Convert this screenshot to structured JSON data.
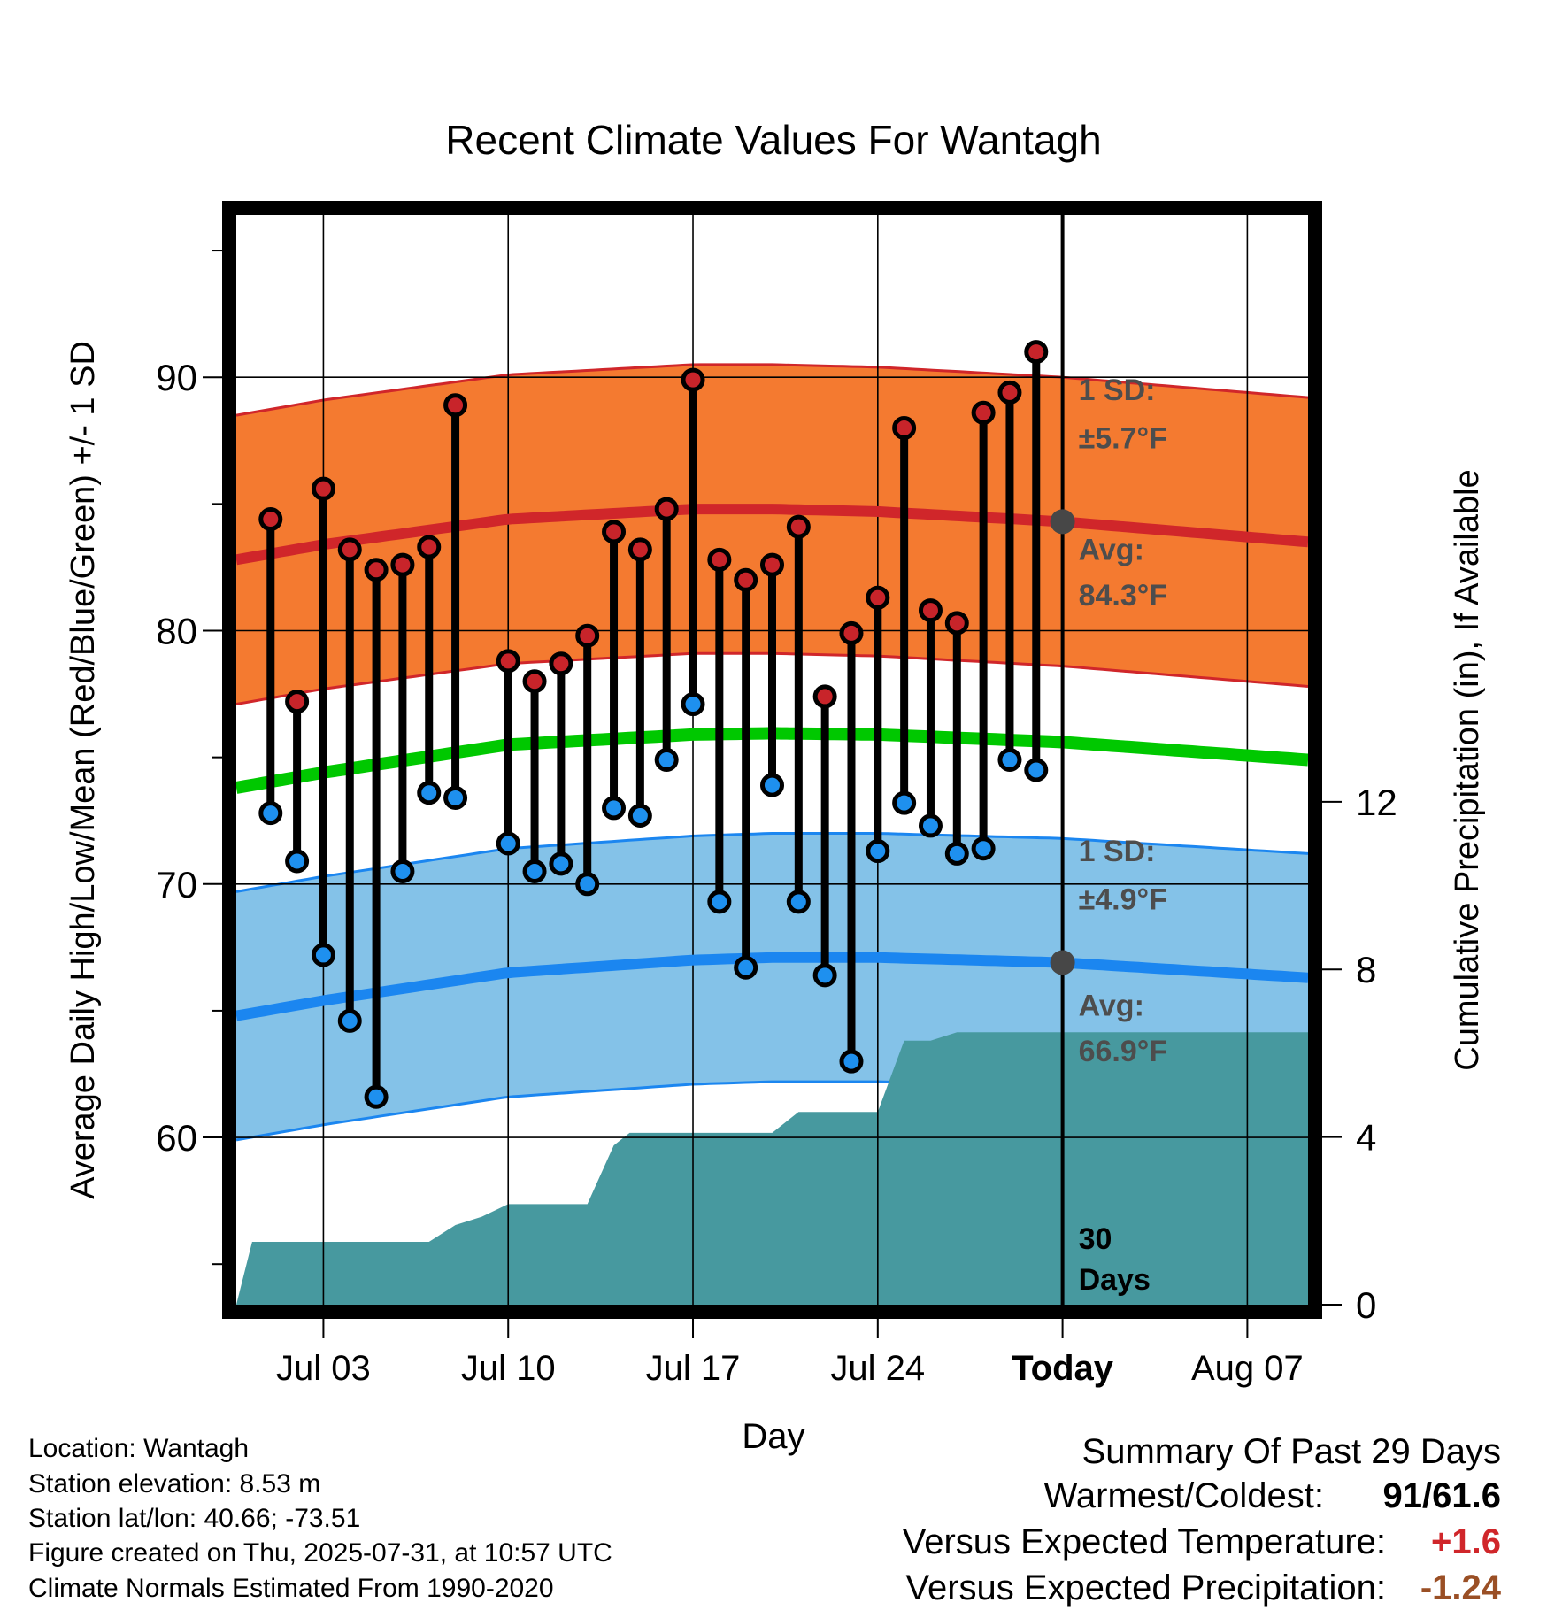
{
  "chart_data": {
    "type": "line",
    "title": "Recent Climate Values For Wantagh",
    "xlabel": "Day",
    "ylabel": "Average Daily High/Low/Mean (Red/Blue/Green) +/- 1 SD",
    "y2label": "Cumulative Precipitation (in), If Available",
    "x_ticks": [
      "Jul 03",
      "Jul 10",
      "Jul 17",
      "Jul 24",
      "Today",
      "Aug 07"
    ],
    "x_tick_days": [
      3,
      10,
      17,
      24,
      31,
      38
    ],
    "xlim": [
      -0.3,
      40.3
    ],
    "ylim": [
      53.4,
      96.4
    ],
    "y_ticks": [
      60,
      70,
      80,
      90
    ],
    "y2lim": [
      0,
      26
    ],
    "y2_ticks": [
      0,
      4,
      8,
      12
    ],
    "today_day": 31,
    "grid": true,
    "colors": {
      "high_band": "#f47a30",
      "high_line": "#d0262a",
      "low_band": "#84c2e8",
      "low_line": "#1b86f0",
      "mean_line": "#00c800",
      "precip": "#47999f",
      "high_dot": "#c8242a",
      "low_dot": "#1e90ef",
      "avg_dot": "#474747",
      "annotation": "#4d4d4d"
    },
    "normal_high": {
      "x": [
        -0.3,
        3,
        10,
        17,
        20,
        24,
        31,
        40.3
      ],
      "values": [
        82.8,
        83.4,
        84.4,
        84.8,
        84.8,
        84.7,
        84.3,
        83.5
      ]
    },
    "normal_low": {
      "x": [
        -0.3,
        3,
        10,
        17,
        20,
        24,
        31,
        40.3
      ],
      "values": [
        64.8,
        65.4,
        66.5,
        67.0,
        67.1,
        67.1,
        66.9,
        66.3
      ]
    },
    "normal_mean": {
      "x": [
        -0.3,
        3,
        10,
        17,
        20,
        24,
        31,
        40.3
      ],
      "values": [
        73.8,
        74.4,
        75.5,
        75.9,
        75.95,
        75.9,
        75.6,
        74.9
      ]
    },
    "high_sd": 5.7,
    "low_sd": 4.9,
    "observed": {
      "days": [
        1,
        2,
        3,
        4,
        5,
        6,
        7,
        8,
        10,
        11,
        12,
        13,
        14,
        15,
        16,
        17,
        18,
        19,
        20,
        21,
        22,
        23,
        24,
        25,
        26,
        27,
        28,
        29,
        30
      ],
      "high": [
        84.4,
        77.2,
        85.6,
        83.2,
        82.4,
        82.6,
        83.3,
        88.9,
        78.8,
        78.0,
        78.7,
        79.8,
        83.9,
        83.2,
        84.8,
        89.9,
        82.8,
        82.0,
        82.6,
        84.1,
        77.4,
        79.9,
        81.3,
        88.0,
        80.8,
        80.3,
        88.6,
        89.4,
        91.0
      ],
      "low": [
        72.8,
        70.9,
        67.2,
        64.6,
        61.6,
        70.5,
        73.6,
        73.4,
        71.6,
        70.5,
        70.8,
        70.0,
        73.0,
        72.7,
        74.9,
        77.1,
        69.3,
        66.7,
        73.9,
        69.3,
        66.4,
        63.0,
        71.3,
        73.2,
        72.3,
        71.2,
        71.4,
        74.9,
        74.5
      ]
    },
    "precip_cumulative": {
      "x": [
        -0.3,
        0.3,
        7,
        8,
        9,
        10,
        13,
        14,
        14.6,
        20,
        21,
        23.9,
        24,
        25,
        26,
        27,
        40.3
      ],
      "values": [
        0,
        1.5,
        1.5,
        1.9,
        2.1,
        2.4,
        2.4,
        3.8,
        4.1,
        4.1,
        4.6,
        4.6,
        4.6,
        6.3,
        6.3,
        6.5,
        6.5
      ]
    },
    "annotations": {
      "high_sd_label": "1 SD:",
      "high_sd_value": "±5.7°F",
      "high_avg_label": "Avg:",
      "high_avg_value": "84.3°F",
      "low_sd_label": "1 SD:",
      "low_sd_value": "±4.9°F",
      "low_avg_label": "Avg:",
      "low_avg_value": "66.9°F",
      "days_number": "30",
      "days_word": "Days"
    }
  },
  "station_info": {
    "location": "Location: Wantagh",
    "elevation": "Station elevation: 8.53 m",
    "latlon": "Station lat/lon: 40.66; -73.51",
    "created": "Figure created on Thu, 2025-07-31, at 10:57 UTC",
    "normals": "Climate Normals Estimated From 1990-2020"
  },
  "summary": {
    "title": "Summary Of Past 29 Days",
    "warmest_label": "Warmest/Coldest:",
    "warmest_value": "91",
    "coldest_value": "61.6",
    "temp_label": "Versus Expected Temperature:",
    "temp_value": "+1.6",
    "temp_color": "#d0262a",
    "precip_label": "Versus Expected Precipitation:",
    "precip_value": "-1.24",
    "precip_color": "#9a4f25"
  }
}
